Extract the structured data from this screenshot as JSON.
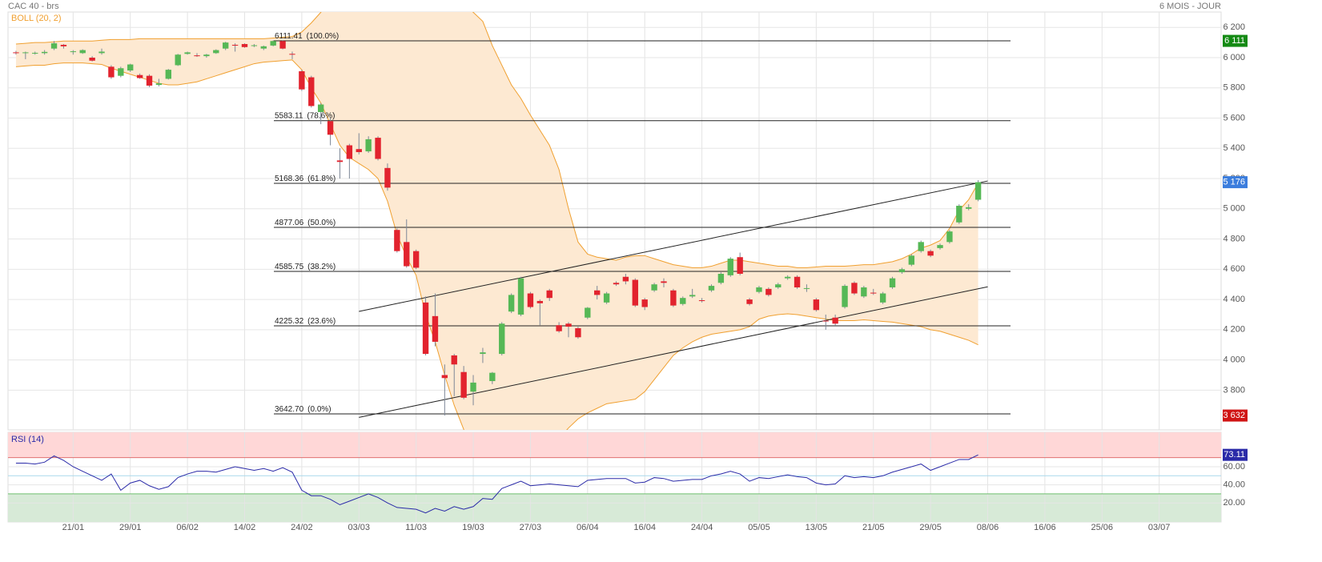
{
  "chart_data": [
    {
      "type": "candlestick",
      "title": "CAC 40 - brs",
      "subtitle": "6 MOIS - JOUR",
      "categories": [
        null,
        null,
        null,
        null,
        null,
        null,
        "21/01",
        null,
        null,
        null,
        null,
        null,
        "29/01",
        null,
        null,
        null,
        null,
        null,
        "06/02",
        null,
        null,
        null,
        null,
        null,
        "14/02",
        null,
        null,
        null,
        null,
        null,
        "24/02",
        null,
        null,
        null,
        null,
        null,
        "03/03",
        null,
        null,
        null,
        null,
        null,
        "11/03",
        null,
        null,
        null,
        null,
        null,
        "19/03",
        null,
        null,
        null,
        null,
        null,
        "27/03",
        null,
        null,
        null,
        null,
        null,
        "06/04",
        null,
        null,
        null,
        null,
        null,
        "16/04",
        null,
        null,
        null,
        null,
        null,
        "24/04",
        null,
        null,
        null,
        null,
        null,
        "05/05",
        null,
        null,
        null,
        null,
        null,
        "13/05",
        null,
        null,
        null,
        null,
        null,
        "21/05",
        null,
        null,
        null,
        null,
        null,
        "29/05",
        null,
        null,
        null,
        null,
        null,
        "08/06",
        null,
        null,
        null,
        null,
        null,
        "16/06",
        null,
        null,
        null,
        null,
        null,
        "25/06",
        null,
        null,
        null,
        null,
        null,
        "03/07",
        null,
        null,
        null,
        null,
        null,
        null
      ],
      "open": [
        6035,
        6030,
        6030,
        6030,
        6060,
        6085,
        6040,
        6030,
        6000,
        6030,
        5940,
        5880,
        5915,
        5885,
        5880,
        5820,
        5860,
        5950,
        6025,
        6015,
        6010,
        6030,
        6060,
        6085,
        6090,
        6080,
        6060,
        6080,
        6110,
        6025,
        5910,
        5870,
        5640,
        5580,
        5320,
        5420,
        5395,
        5380,
        5470,
        5270,
        4860,
        4780,
        4720,
        4380,
        4290,
        3900,
        4030,
        3920,
        3790,
        4040,
        3860,
        4040,
        4320,
        4300,
        4440,
        4390,
        4460,
        4230,
        4240,
        4210,
        4280,
        4460,
        4380,
        4510,
        4550,
        4530,
        4400,
        4460,
        4520,
        4460,
        4370,
        4420,
        4395,
        4460,
        4510,
        4560,
        4680,
        4400,
        4450,
        4470,
        4480,
        4540,
        4550,
        4470,
        4400,
        4260,
        4280,
        4350,
        4510,
        4420,
        4445,
        4380,
        4480,
        4580,
        4630,
        4720,
        4720,
        4740,
        4780,
        4910,
        5000,
        5060,
        null,
        null,
        null,
        null,
        null,
        null,
        null,
        null,
        null,
        null,
        null,
        null,
        null,
        null,
        null,
        null,
        null,
        null,
        null,
        null,
        null,
        null,
        null,
        null,
        null
      ],
      "high": [
        6045,
        6040,
        6040,
        6050,
        6110,
        6090,
        6050,
        6055,
        6010,
        6060,
        5950,
        5940,
        5960,
        5895,
        5890,
        5860,
        5925,
        6025,
        6040,
        6030,
        6025,
        6055,
        6105,
        6095,
        6095,
        6090,
        6080,
        6115,
        6115,
        6040,
        5920,
        5880,
        5700,
        5600,
        5400,
        5430,
        5500,
        5480,
        5480,
        5300,
        4870,
        4930,
        4730,
        4420,
        4440,
        3970,
        4040,
        3960,
        3900,
        4080,
        3920,
        4250,
        4440,
        4550,
        4450,
        4400,
        4470,
        4250,
        4250,
        4220,
        4350,
        4490,
        4450,
        4520,
        4570,
        4540,
        4410,
        4510,
        4540,
        4470,
        4420,
        4470,
        4410,
        4500,
        4580,
        4680,
        4710,
        4410,
        4490,
        4480,
        4510,
        4560,
        4560,
        4500,
        4410,
        4300,
        4300,
        4500,
        4520,
        4490,
        4470,
        4450,
        4550,
        4610,
        4700,
        4790,
        4730,
        4770,
        4860,
        5030,
        5030,
        5190,
        null,
        null,
        null,
        null,
        null,
        null,
        null,
        null,
        null,
        null,
        null,
        null,
        null,
        null,
        null,
        null,
        null,
        null,
        null,
        null,
        null,
        null,
        null,
        null,
        null
      ],
      "low": [
        6020,
        5990,
        6020,
        6020,
        6050,
        6060,
        6020,
        6025,
        5975,
        6020,
        5860,
        5870,
        5905,
        5860,
        5805,
        5810,
        5855,
        5945,
        6020,
        6005,
        6000,
        6025,
        6050,
        6040,
        6065,
        6070,
        6050,
        6075,
        6055,
        5990,
        5780,
        5670,
        5560,
        5420,
        5200,
        5200,
        5360,
        5370,
        5320,
        5120,
        4710,
        4610,
        4600,
        4030,
        4090,
        3632,
        3760,
        3740,
        3700,
        3980,
        3840,
        4030,
        4310,
        4290,
        4340,
        4230,
        4390,
        4180,
        4150,
        4140,
        4270,
        4400,
        4370,
        4490,
        4500,
        4350,
        4330,
        4450,
        4480,
        4350,
        4360,
        4410,
        4380,
        4450,
        4500,
        4550,
        4560,
        4360,
        4440,
        4420,
        4470,
        4530,
        4470,
        4450,
        4320,
        4200,
        4230,
        4340,
        4430,
        4410,
        4430,
        4370,
        4470,
        4570,
        4620,
        4710,
        4680,
        4730,
        4770,
        4900,
        4990,
        5050,
        null,
        null,
        null,
        null,
        null,
        null,
        null,
        null,
        null,
        null,
        null,
        null,
        null,
        null,
        null,
        null,
        null,
        null,
        null,
        null,
        null,
        null,
        null,
        null,
        null
      ],
      "close": [
        6030,
        6035,
        6032,
        6038,
        6095,
        6075,
        6042,
        6050,
        5980,
        6040,
        5870,
        5930,
        5955,
        5865,
        5815,
        5830,
        5920,
        6020,
        6035,
        6010,
        6020,
        6050,
        6100,
        6080,
        6070,
        6082,
        6075,
        6110,
        6060,
        6020,
        5790,
        5680,
        5690,
        5490,
        5310,
        5330,
        5375,
        5460,
        5330,
        5140,
        4720,
        4620,
        4610,
        4040,
        4120,
        3880,
        3970,
        3750,
        3850,
        4050,
        3915,
        4240,
        4430,
        4540,
        4350,
        4375,
        4410,
        4190,
        4220,
        4150,
        4345,
        4430,
        4440,
        4500,
        4520,
        4360,
        4350,
        4500,
        4510,
        4360,
        4410,
        4430,
        4392,
        4490,
        4570,
        4670,
        4570,
        4370,
        4480,
        4430,
        4500,
        4550,
        4480,
        4475,
        4330,
        4255,
        4240,
        4490,
        4440,
        4480,
        4440,
        4440,
        4540,
        4600,
        4690,
        4780,
        4690,
        4760,
        4850,
        5020,
        5010,
        5176,
        null,
        null,
        null,
        null,
        null,
        null,
        null,
        null,
        null,
        null,
        null,
        null,
        null,
        null,
        null,
        null,
        null,
        null,
        null,
        null,
        null,
        null,
        null,
        null,
        null
      ],
      "up_color": "#56b856",
      "down_color": "#e2232e",
      "wick_color": "#7d8797",
      "bands": {
        "name": "BOLL (20, 2)",
        "color": "#f0a030",
        "fill": "#fde9d2",
        "upper": [
          6090,
          6095,
          6100,
          6100,
          6105,
          6110,
          6110,
          6110,
          6110,
          6115,
          6120,
          6120,
          6120,
          6125,
          6125,
          6125,
          6125,
          6125,
          6125,
          6125,
          6125,
          6125,
          6125,
          6125,
          6125,
          6125,
          6125,
          6130,
          6135,
          6140,
          6170,
          6230,
          6300,
          6380,
          6470,
          6560,
          6640,
          6700,
          6760,
          6800,
          6820,
          6800,
          6760,
          6700,
          6620,
          6520,
          6420,
          6350,
          6300,
          6240,
          6080,
          5950,
          5820,
          5730,
          5620,
          5520,
          5420,
          5260,
          5000,
          4780,
          4700,
          4680,
          4670,
          4660,
          4680,
          4690,
          4690,
          4670,
          4650,
          4630,
          4620,
          4610,
          4610,
          4620,
          4640,
          4660,
          4660,
          4650,
          4640,
          4630,
          4620,
          4620,
          4610,
          4610,
          4615,
          4620,
          4620,
          4620,
          4625,
          4630,
          4630,
          4640,
          4650,
          4670,
          4700,
          4740,
          4760,
          4790,
          4870,
          4990,
          5060,
          5170,
          null,
          null,
          null,
          null,
          null,
          null,
          null,
          null,
          null,
          null,
          null,
          null,
          null,
          null,
          null,
          null,
          null,
          null,
          null,
          null,
          null,
          null,
          null,
          null,
          null
        ],
        "lower": [
          5940,
          5945,
          5950,
          5950,
          5960,
          5965,
          5965,
          5965,
          5960,
          5955,
          5930,
          5910,
          5890,
          5870,
          5850,
          5830,
          5820,
          5820,
          5830,
          5840,
          5860,
          5880,
          5900,
          5920,
          5940,
          5960,
          5970,
          5975,
          5980,
          5985,
          5920,
          5800,
          5700,
          5560,
          5420,
          5340,
          5300,
          5260,
          5200,
          5050,
          4830,
          4680,
          4560,
          4300,
          4120,
          3900,
          3700,
          3540,
          3400,
          3300,
          3220,
          3180,
          3170,
          3180,
          3220,
          3290,
          3380,
          3480,
          3550,
          3610,
          3650,
          3680,
          3710,
          3720,
          3730,
          3740,
          3790,
          3870,
          3950,
          4030,
          4080,
          4120,
          4150,
          4170,
          4180,
          4190,
          4200,
          4220,
          4270,
          4290,
          4300,
          4305,
          4300,
          4290,
          4280,
          4270,
          4260,
          4260,
          4260,
          4265,
          4260,
          4255,
          4250,
          4240,
          4230,
          4220,
          4200,
          4190,
          4170,
          4150,
          4130,
          4100,
          null,
          null,
          null,
          null,
          null,
          null,
          null,
          null,
          null,
          null,
          null,
          null,
          null,
          null,
          null,
          null,
          null,
          null,
          null,
          null,
          null,
          null,
          null,
          null,
          null
        ]
      },
      "fibonacci": {
        "color": "#222222",
        "values": [
          6111.41,
          5583.11,
          5168.36,
          4877.06,
          4585.75,
          4225.32,
          3642.7
        ],
        "value_labels": [
          "6111.41",
          "5583.11",
          "5168.36",
          "4877.06",
          "4585.75",
          "4225.32",
          "3642.70"
        ],
        "ratio_labels": [
          "(100.0%)",
          "(78.6%)",
          "(61.8%)",
          "(50.0%)",
          "(38.2%)",
          "(23.6%)",
          "(0.0%)"
        ]
      },
      "trendlines": [
        {
          "from": "03/03",
          "to": "08/06",
          "values": [
            4321,
            5184
          ]
        },
        {
          "from": "03/03",
          "to": "08/06",
          "values": [
            3620,
            4484
          ]
        }
      ],
      "markers": [
        {
          "value": 6111,
          "label": "6 111",
          "color": "#148a14"
        },
        {
          "value": 5176,
          "label": "5 176",
          "color": "#3b7ddd"
        },
        {
          "value": 3632,
          "label": "3 632",
          "color": "#d01414"
        }
      ],
      "ylim": [
        3537,
        6302
      ],
      "yticks": [
        {
          "value": 3800,
          "label": "3 800"
        },
        {
          "value": 4000,
          "label": "4 000"
        },
        {
          "value": 4200,
          "label": "4 200"
        },
        {
          "value": 4400,
          "label": "4 400"
        },
        {
          "value": 4600,
          "label": "4 600"
        },
        {
          "value": 4800,
          "label": "4 800"
        },
        {
          "value": 5000,
          "label": "5 000"
        },
        {
          "value": 5200,
          "label": "5 200"
        },
        {
          "value": 5400,
          "label": "5 400"
        },
        {
          "value": 5600,
          "label": "5 600"
        },
        {
          "value": 5800,
          "label": "5 800"
        },
        {
          "value": 6000,
          "label": "6 000"
        },
        {
          "value": 6200,
          "label": "6 200"
        }
      ],
      "grid": true
    },
    {
      "type": "line",
      "series": [
        {
          "name": "RSI (14)",
          "color": "#2a2aa8",
          "values": [
            64,
            64,
            63,
            65,
            72,
            67,
            60,
            55,
            50,
            45,
            52,
            34,
            42,
            45,
            39,
            35,
            38,
            48,
            52,
            55,
            55,
            54,
            57,
            60,
            58,
            56,
            58,
            55,
            59,
            54,
            34,
            28,
            28,
            24,
            18,
            22,
            26,
            30,
            26,
            20,
            15,
            14,
            13,
            9,
            14,
            11,
            16,
            13,
            16,
            25,
            24,
            36,
            40,
            44,
            39,
            40,
            41,
            40,
            39,
            38,
            45,
            46,
            47,
            47,
            47,
            42,
            43,
            48,
            47,
            44,
            45,
            46,
            46,
            50,
            52,
            55,
            52,
            44,
            48,
            47,
            49,
            51,
            49,
            48,
            42,
            40,
            41,
            50,
            48,
            49,
            48,
            50,
            54,
            57,
            60,
            63,
            56,
            60,
            64,
            68,
            68,
            73.11,
            null,
            null,
            null,
            null,
            null,
            null,
            null,
            null,
            null,
            null,
            null,
            null,
            null,
            null,
            null,
            null,
            null,
            null,
            null,
            null,
            null,
            null,
            null,
            null,
            null
          ]
        }
      ],
      "overbought": {
        "value": 70,
        "color": "#e07070",
        "fill": "#ffd7d7"
      },
      "oversold": {
        "value": 30,
        "color": "#6cbf6c",
        "fill": "#d7ead7"
      },
      "midline": {
        "value": 50,
        "color": "#a9d8ec"
      },
      "ylim": [
        -1,
        98
      ],
      "yticks": [
        {
          "value": 20,
          "label": "20.00"
        },
        {
          "value": 40,
          "label": "40.00"
        },
        {
          "value": 60,
          "label": "60.00"
        }
      ],
      "grid": true
    }
  ]
}
